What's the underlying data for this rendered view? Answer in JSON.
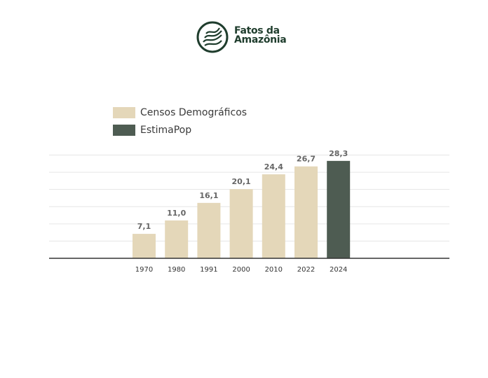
{
  "logo": {
    "line1": "Fatos da",
    "line2": "Amazônia",
    "icon": "leaf-seal-icon"
  },
  "colors": {
    "census": "#e4d7b9",
    "estimate": "#4e5c52",
    "grid": "#e6e6e6",
    "axis": "#333333",
    "label": "#666666",
    "brand": "#1f3d2d"
  },
  "chart_data": {
    "type": "bar",
    "categories": [
      "1970",
      "1980",
      "1991",
      "2000",
      "2010",
      "2022",
      "2024"
    ],
    "series": [
      {
        "name": "Censos Demográficos",
        "color": "#e4d7b9"
      },
      {
        "name": "EstimaPop",
        "color": "#4e5c52"
      }
    ],
    "values": [
      7.1,
      11.0,
      16.1,
      20.1,
      24.4,
      26.7,
      28.3
    ],
    "value_labels": [
      "7,1",
      "11,0",
      "16,1",
      "20,1",
      "24,4",
      "26,7",
      "28,3"
    ],
    "series_index": [
      0,
      0,
      0,
      0,
      0,
      0,
      1
    ],
    "ylim": [
      0,
      30
    ],
    "gridlines": [
      0,
      5,
      10,
      15,
      20,
      25,
      30
    ],
    "grid": true,
    "legend_position": "top-left"
  }
}
